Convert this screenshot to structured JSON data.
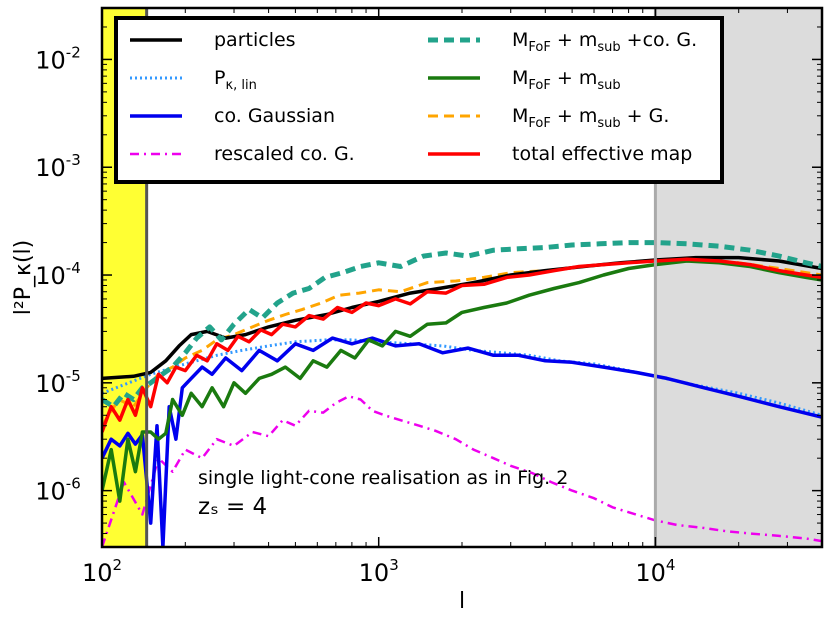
{
  "chart_data": {
    "type": "line",
    "xlabel": "l",
    "ylabel": "l²P_κ(l)",
    "xscale": "log",
    "yscale": "log",
    "xlim": [
      100,
      40000
    ],
    "ylim": [
      3e-07,
      0.03
    ],
    "x_ticks": [
      {
        "value": 100,
        "base": "10",
        "exp": "2"
      },
      {
        "value": 1000,
        "base": "10",
        "exp": "3"
      },
      {
        "value": 10000,
        "base": "10",
        "exp": "4"
      }
    ],
    "y_ticks": [
      {
        "value": 1e-06,
        "base": "10",
        "exp": "-6"
      },
      {
        "value": 1e-05,
        "base": "10",
        "exp": "-5"
      },
      {
        "value": 0.0001,
        "base": "10",
        "exp": "-4"
      },
      {
        "value": 0.001,
        "base": "10",
        "exp": "-3"
      },
      {
        "value": 0.01,
        "base": "10",
        "exp": "-2"
      }
    ],
    "shaded_regions": [
      {
        "x": [
          100,
          145
        ],
        "color": "#ffff33"
      },
      {
        "x": [
          10000,
          40000
        ],
        "color": "#dcdcdc"
      }
    ],
    "vlines": [
      {
        "x": 145,
        "color": "#555555"
      },
      {
        "x": 10000,
        "color": "#aaaaaa"
      }
    ],
    "annotation": {
      "line1": "single light-cone realisation as in Fig. 2",
      "line2": "zₛ = 4"
    },
    "legend_position": "top",
    "series": [
      {
        "name": "particles",
        "color": "#000000",
        "dash": "solid",
        "width": 3.5,
        "x": [
          100,
          130,
          150,
          170,
          190,
          210,
          240,
          280,
          330,
          400,
          500,
          650,
          800,
          1000,
          1300,
          1700,
          2200,
          3000,
          4000,
          5500,
          7500,
          10000,
          14000,
          20000,
          28000,
          40000
        ],
        "y": [
          1.1e-05,
          1.15e-05,
          1.25e-05,
          1.6e-05,
          2.2e-05,
          2.8e-05,
          3e-05,
          2.6e-05,
          2.8e-05,
          3.3e-05,
          3.8e-05,
          4.3e-05,
          5e-05,
          5.7e-05,
          6.8e-05,
          7.6e-05,
          8.5e-05,
          0.0001,
          0.00011,
          0.00012,
          0.00013,
          0.000138,
          0.000145,
          0.000145,
          0.000135,
          0.000115
        ]
      },
      {
        "name": "P_κ,lin",
        "color": "#3399ff",
        "dash": "dot",
        "width": 3,
        "x": [
          100,
          150,
          200,
          260,
          320,
          400,
          500,
          650,
          800,
          1000,
          1300,
          1700,
          2200,
          2800,
          3500,
          4500,
          6000,
          8000,
          10000,
          14000,
          20000,
          28000,
          40000
        ],
        "y": [
          8e-06,
          1.2e-05,
          1.5e-05,
          1.8e-05,
          2e-05,
          2.2e-05,
          2.4e-05,
          2.5e-05,
          2.5e-05,
          2.4e-05,
          2.3e-05,
          2.2e-05,
          2e-05,
          1.9e-05,
          1.8e-05,
          1.6e-05,
          1.5e-05,
          1.3e-05,
          1.15e-05,
          9.5e-06,
          8e-06,
          6.5e-06,
          5e-06
        ]
      },
      {
        "name": "co. Gaussian",
        "color": "#0000ee",
        "dash": "solid",
        "width": 3.5,
        "x": [
          100,
          108,
          116,
          124,
          132,
          140,
          150,
          158,
          166,
          175,
          185,
          195,
          210,
          230,
          250,
          280,
          320,
          370,
          430,
          500,
          580,
          680,
          800,
          950,
          1150,
          1400,
          1700,
          2100,
          2600,
          3200,
          4000,
          5000,
          6500,
          8500,
          11000,
          15000,
          20000,
          28000,
          40000
        ],
        "y": [
          2e-06,
          3e-06,
          2.6e-06,
          3.4e-06,
          2.7e-06,
          3.3e-06,
          5e-07,
          4e-06,
          3e-07,
          6e-06,
          3e-06,
          9e-06,
          1.1e-05,
          1.4e-05,
          1.2e-05,
          1.7e-05,
          1.3e-05,
          2e-05,
          1.6e-05,
          2.3e-05,
          2e-05,
          2.6e-05,
          2.3e-05,
          2.6e-05,
          2.2e-05,
          2.3e-05,
          1.9e-05,
          2.1e-05,
          1.8e-05,
          1.8e-05,
          1.6e-05,
          1.55e-05,
          1.4e-05,
          1.25e-05,
          1.1e-05,
          9e-06,
          7.5e-06,
          6e-06,
          4.8e-06
        ]
      },
      {
        "name": "rescaled co. G.",
        "color": "#ee00ee",
        "dash": "dashdot",
        "width": 2.5,
        "x": [
          100,
          120,
          140,
          160,
          180,
          200,
          230,
          260,
          300,
          350,
          400,
          450,
          500,
          560,
          630,
          700,
          780,
          860,
          950,
          1050,
          1200,
          1400,
          1600,
          1900,
          2200,
          2600,
          3000,
          3600,
          4200,
          5000,
          6000,
          7000,
          8500,
          10000,
          12000,
          15000,
          18000,
          22000,
          28000,
          35000,
          40000
        ],
        "y": [
          3e-07,
          1.2e-06,
          6e-07,
          2e-06,
          1.5e-06,
          2.4e-06,
          2e-06,
          3e-06,
          2.6e-06,
          3.5e-06,
          3.2e-06,
          4.5e-06,
          4e-06,
          5.5e-06,
          5.3e-06,
          6.5e-06,
          7.5e-06,
          7e-06,
          5.5e-06,
          5e-06,
          4.5e-06,
          4e-06,
          3.6e-06,
          3e-06,
          2.4e-06,
          2e-06,
          1.7e-06,
          1.45e-06,
          1.2e-06,
          1e-06,
          8.5e-07,
          7e-07,
          6e-07,
          5.3e-07,
          4.8e-07,
          4.5e-07,
          4.2e-07,
          4e-07,
          3.8e-07,
          3.6e-07,
          3.4e-07
        ]
      },
      {
        "name": "M_FoF + m_sub + co. G.",
        "color": "#22a38b",
        "dash": "dash",
        "width": 5,
        "x": [
          100,
          110,
          120,
          130,
          140,
          150,
          165,
          180,
          200,
          220,
          245,
          270,
          300,
          340,
          380,
          430,
          490,
          560,
          640,
          740,
          860,
          1000,
          1200,
          1450,
          1750,
          2100,
          2600,
          3200,
          4000,
          5000,
          6300,
          8000,
          10000,
          13000,
          17000,
          22000,
          28000,
          35000,
          40000
        ],
        "y": [
          7e-06,
          6e-06,
          8e-06,
          7e-06,
          9e-06,
          1e-05,
          1.2e-05,
          1.4e-05,
          1.9e-05,
          2.6e-05,
          3.3e-05,
          2.5e-05,
          3.5e-05,
          4.8e-05,
          4e-05,
          5.5e-05,
          6.8e-05,
          7.5e-05,
          9.5e-05,
          0.000105,
          0.00012,
          0.00013,
          0.00012,
          0.00015,
          0.00016,
          0.00015,
          0.00017,
          0.000175,
          0.00018,
          0.00019,
          0.000195,
          0.0002,
          0.0002,
          0.000195,
          0.000185,
          0.00017,
          0.00015,
          0.00013,
          0.00012
        ]
      },
      {
        "name": "M_FoF + m_sub",
        "color": "#1a7a0f",
        "dash": "solid",
        "width": 3.5,
        "x": [
          100,
          108,
          116,
          124,
          132,
          140,
          150,
          160,
          170,
          180,
          195,
          210,
          230,
          250,
          275,
          300,
          330,
          370,
          410,
          460,
          520,
          580,
          650,
          730,
          820,
          920,
          1030,
          1150,
          1300,
          1500,
          1750,
          2000,
          2400,
          2900,
          3500,
          4300,
          5300,
          6500,
          8000,
          10000,
          13000,
          17000,
          22000,
          28000,
          35000,
          40000
        ],
        "y": [
          1e-06,
          2.4e-06,
          8e-07,
          3e-06,
          1.5e-06,
          3.5e-06,
          3.5e-06,
          3e-06,
          3.4e-06,
          7e-06,
          5e-06,
          8e-06,
          6e-06,
          9e-06,
          6e-06,
          1e-05,
          8e-06,
          1.1e-05,
          1.2e-05,
          1.4e-05,
          1.1e-05,
          1.6e-05,
          1.4e-05,
          2e-05,
          1.7e-05,
          2.5e-05,
          2.2e-05,
          3e-05,
          2.7e-05,
          3.5e-05,
          3.6e-05,
          4.5e-05,
          5e-05,
          5.5e-05,
          6.5e-05,
          7.5e-05,
          8.5e-05,
          0.0001,
          0.000115,
          0.000125,
          0.000135,
          0.00013,
          0.00012,
          0.000105,
          9.5e-05,
          9e-05
        ]
      },
      {
        "name": "M_FoF + m_sub + G.",
        "color": "#ffa500",
        "dash": "dash",
        "width": 3,
        "x": [
          100,
          115,
          130,
          145,
          160,
          180,
          200,
          230,
          260,
          300,
          350,
          400,
          460,
          530,
          620,
          720,
          850,
          1000,
          1200,
          1500,
          1900,
          2400,
          3000,
          4000,
          5500,
          7500,
          10000,
          14000,
          20000,
          28000,
          40000
        ],
        "y": [
          4e-06,
          7e-06,
          6e-06,
          9e-06,
          1.2e-05,
          1.4e-05,
          1.7e-05,
          2e-05,
          2.5e-05,
          2.8e-05,
          3.3e-05,
          3.8e-05,
          4.3e-05,
          4.8e-05,
          5.5e-05,
          6.5e-05,
          6.8e-05,
          7.3e-05,
          7e-05,
          8.5e-05,
          8.8e-05,
          9.5e-05,
          0.000105,
          0.00011,
          0.00012,
          0.00013,
          0.000138,
          0.00014,
          0.00013,
          0.000115,
          0.0001
        ]
      },
      {
        "name": "total effective map",
        "color": "#ff0000",
        "dash": "solid",
        "width": 3.5,
        "x": [
          100,
          108,
          116,
          124,
          132,
          140,
          150,
          160,
          172,
          185,
          200,
          220,
          240,
          260,
          285,
          310,
          340,
          375,
          410,
          450,
          500,
          560,
          630,
          710,
          800,
          900,
          1000,
          1150,
          1300,
          1500,
          1750,
          2000,
          2400,
          2900,
          3500,
          4300,
          5300,
          6500,
          8000,
          10000,
          13000,
          17000,
          22000,
          28000,
          35000,
          40000
        ],
        "y": [
          3.5e-06,
          6e-06,
          4.5e-06,
          7e-06,
          5e-06,
          9e-06,
          6e-06,
          1.2e-05,
          1e-05,
          1.4e-05,
          1.3e-05,
          1.8e-05,
          1.6e-05,
          2.3e-05,
          2e-05,
          2.7e-05,
          2.4e-05,
          3.1e-05,
          2.8e-05,
          3.5e-05,
          3.3e-05,
          4.2e-05,
          3.9e-05,
          5e-05,
          4.5e-05,
          5.5e-05,
          5.2e-05,
          6e-05,
          5.4e-05,
          7e-05,
          6.8e-05,
          8e-05,
          8.2e-05,
          9.5e-05,
          0.0001,
          0.00011,
          0.00012,
          0.000125,
          0.00013,
          0.000135,
          0.00014,
          0.000135,
          0.000125,
          0.00011,
          0.0001,
          9.5e-05
        ]
      }
    ],
    "legend": [
      {
        "label": "particles",
        "series": 0,
        "col": 0,
        "row": 0
      },
      {
        "label": "P",
        "sub": "κ, lin",
        "series": 1,
        "col": 0,
        "row": 1
      },
      {
        "label": "co. Gaussian",
        "series": 2,
        "col": 0,
        "row": 2
      },
      {
        "label": "rescaled co. G.",
        "series": 3,
        "col": 0,
        "row": 3
      },
      {
        "label": "M",
        "sub": "FoF",
        "tail": "+ m",
        "sub2": "sub",
        "tail2": "+co. G.",
        "series": 4,
        "col": 1,
        "row": 0
      },
      {
        "label": "M",
        "sub": "FoF",
        "tail": "+ m",
        "sub2": "sub",
        "tail2": "",
        "series": 5,
        "col": 1,
        "row": 1
      },
      {
        "label": "M",
        "sub": "FoF",
        "tail": "+ m",
        "sub2": "sub",
        "tail2": "+ G.",
        "series": 6,
        "col": 1,
        "row": 2
      },
      {
        "label": "total effective map",
        "series": 7,
        "col": 1,
        "row": 3
      }
    ]
  }
}
